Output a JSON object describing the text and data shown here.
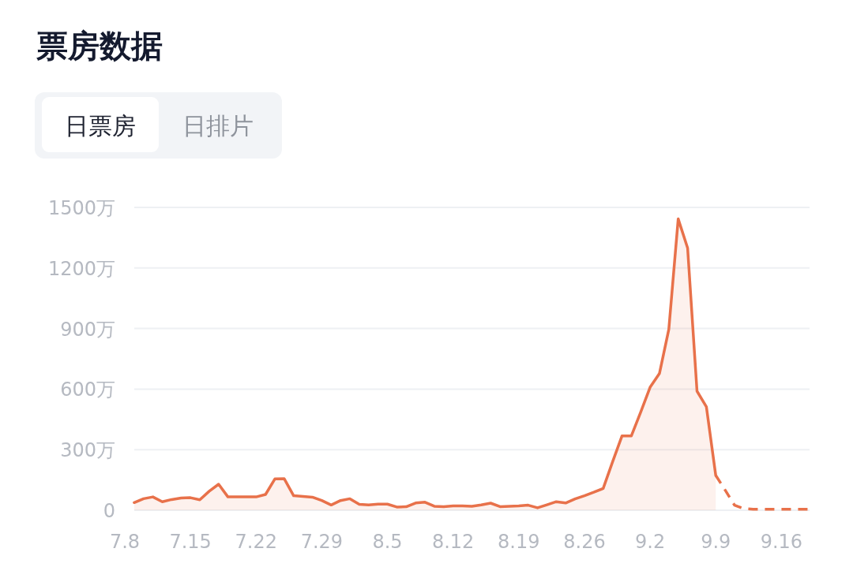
{
  "chart_data": {
    "type": "area",
    "title": "票房数据",
    "annotations": [
      "日票房",
      "日排片"
    ],
    "x": [
      "--07-09",
      "--07-10",
      "--07-11",
      "--07-12",
      "--07-13",
      "--07-14",
      "--07-15",
      "--07-16",
      "--07-17",
      "--07-18",
      "--07-19",
      "--07-20",
      "--07-21",
      "--07-22",
      "--07-23",
      "--07-24",
      "--07-25",
      "--07-26",
      "--07-27",
      "--07-28",
      "--07-29",
      "--07-30",
      "--07-31",
      "--08-01",
      "--08-02",
      "--08-03",
      "--08-04",
      "--08-05",
      "--08-06",
      "--08-07",
      "--08-08",
      "--08-09",
      "--08-10",
      "--08-11",
      "--08-12",
      "--08-13",
      "--08-14",
      "--08-15",
      "--08-16",
      "--08-17",
      "--08-18",
      "--08-19",
      "--08-20",
      "--08-21",
      "--08-22",
      "--08-23",
      "--08-24",
      "--08-25",
      "--08-26",
      "--08-27",
      "--08-28",
      "--08-29",
      "--08-30",
      "--08-31",
      "--09-01",
      "--09-02",
      "--09-03",
      "--09-04",
      "--09-05",
      "--09-06",
      "--09-07",
      "--09-08",
      "--09-09"
    ],
    "series": [
      {
        "type": "area",
        "color": "#e8714a",
        "line_style": "solid",
        "values": [
          38,
          57,
          66,
          42,
          53,
          60,
          62,
          52,
          94,
          129,
          66,
          66,
          66,
          66,
          78,
          155,
          156,
          72,
          68,
          65,
          48,
          26,
          48,
          57,
          29,
          26,
          30,
          30,
          16,
          17,
          36,
          40,
          20,
          18,
          21,
          22,
          20,
          26,
          35,
          18,
          20,
          21,
          25,
          12,
          27,
          42,
          36,
          56,
          72,
          89,
          108,
          240,
          368,
          368,
          486,
          609,
          678,
          896,
          1443,
          1299,
          590,
          512,
          173
        ]
      },
      {
        "type": "line",
        "color": "#e8714a",
        "line_style": "dashed",
        "x": [
          "--09-09",
          "--09-10",
          "--09-11",
          "--09-12",
          "--09-13",
          "--09-14",
          "--09-15",
          "--09-16",
          "--09-17",
          "--09-18",
          "--09-19"
        ],
        "values": [
          173,
          100,
          25,
          8,
          5,
          5,
          5,
          5,
          5,
          5,
          5
        ]
      }
    ],
    "xlim": [
      "--07-08",
      "--09-19"
    ],
    "xticks": [
      {
        "value": "--07-08",
        "label": "7.8"
      },
      {
        "value": "--07-15",
        "label": "7.15"
      },
      {
        "value": "--07-22",
        "label": "7.22"
      },
      {
        "value": "--07-29",
        "label": "7.29"
      },
      {
        "value": "--08-05",
        "label": "8.5"
      },
      {
        "value": "--08-12",
        "label": "8.12"
      },
      {
        "value": "--08-19",
        "label": "8.19"
      },
      {
        "value": "--08-26",
        "label": "8.26"
      },
      {
        "value": "--09-02",
        "label": "9.2"
      },
      {
        "value": "--09-09",
        "label": "9.9"
      },
      {
        "value": "--09-16",
        "label": "9.16"
      }
    ],
    "ylim": [
      0,
      1500
    ],
    "yticks": [
      0,
      {
        "value": 300,
        "label": "300万"
      },
      {
        "value": 600,
        "label": "600万"
      },
      {
        "value": 900,
        "label": "900万"
      },
      {
        "value": 1200,
        "label": "1200万"
      },
      {
        "value": 1500,
        "label": "1500万"
      }
    ],
    "grid": "y",
    "marker": "none"
  }
}
